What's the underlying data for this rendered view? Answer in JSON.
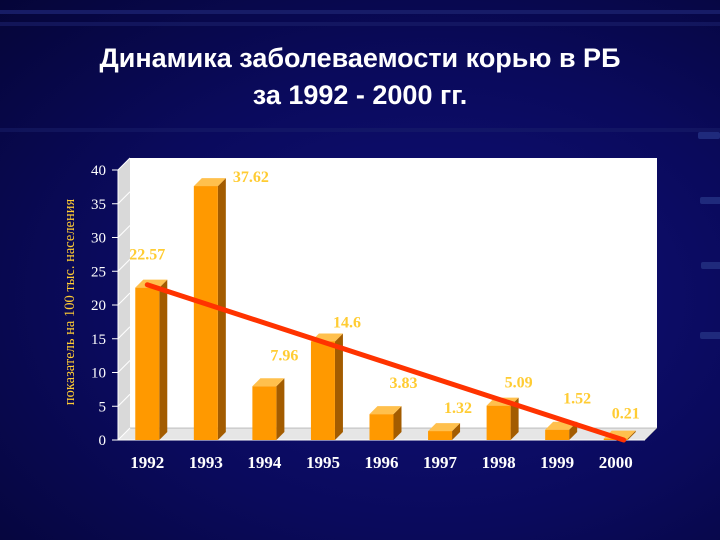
{
  "title_line1": "Динамика заболеваемости корью в РБ",
  "title_line2": "за 1992 - 2000 гг.",
  "colors": {
    "bar_front": "#ff9900",
    "bar_side": "#a35c00",
    "bar_top": "#ffc04d",
    "trend": "#ff3300",
    "text_yellow": "#ffcc33",
    "plot_bg": "#ffffff"
  },
  "chart_data": {
    "type": "bar",
    "ylabel": "показатель на 100 тыс. населения",
    "ylim": [
      0,
      40
    ],
    "yticks": [
      0,
      5,
      10,
      15,
      20,
      25,
      30,
      35,
      40
    ],
    "categories": [
      "1992",
      "1993",
      "1994",
      "1995",
      "1996",
      "1997",
      "1998",
      "1999",
      "2000"
    ],
    "values": [
      22.57,
      37.62,
      7.96,
      14.6,
      3.83,
      1.32,
      5.09,
      1.52,
      0.21
    ],
    "data_labels": [
      "22.57",
      "37.62",
      "7.96",
      "14.6",
      "3.83",
      "1.32",
      "5.09",
      "1.52",
      "0.21"
    ],
    "trend_line": {
      "from": {
        "x": "1992",
        "y": 23.0
      },
      "to": {
        "x": "2000",
        "y": 0.0
      }
    },
    "grid": false,
    "legend": "none"
  }
}
